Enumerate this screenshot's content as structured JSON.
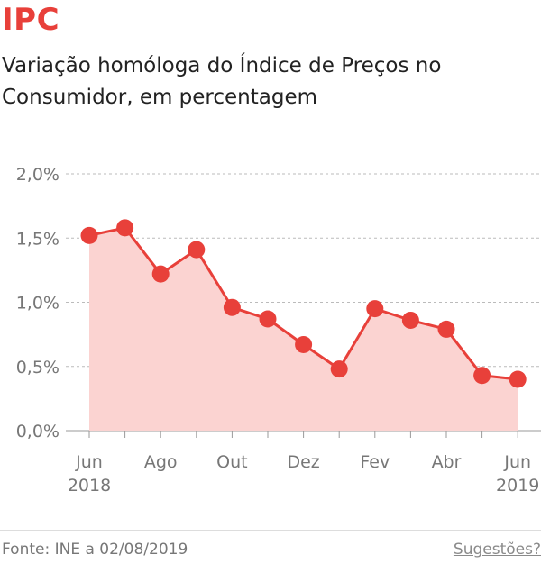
{
  "header": {
    "kicker": "IPC",
    "subtitle": "Variação homóloga do Índice de Preços no Consumidor, em percentagem"
  },
  "colors": {
    "accent": "#e8403a",
    "area_fill": "#fbd3d1",
    "grid": "#bbbbbb"
  },
  "chart_data": {
    "type": "area",
    "title": "",
    "xlabel": "",
    "ylabel": "",
    "x": [
      "Jun 2018",
      "Jul 2018",
      "Ago 2018",
      "Set 2018",
      "Out 2018",
      "Nov 2018",
      "Dez 2018",
      "Jan 2019",
      "Fev 2019",
      "Mar 2019",
      "Abr 2019",
      "Mai 2019",
      "Jun 2019"
    ],
    "values": [
      1.52,
      1.58,
      1.22,
      1.41,
      0.96,
      0.87,
      0.67,
      0.48,
      0.95,
      0.86,
      0.79,
      0.43,
      0.4
    ],
    "ylim": [
      0,
      2.0
    ],
    "y_ticks": [
      {
        "value": 0.0,
        "label": "0,0%"
      },
      {
        "value": 0.5,
        "label": "0,5%"
      },
      {
        "value": 1.0,
        "label": "1,0%"
      },
      {
        "value": 1.5,
        "label": "1,5%"
      },
      {
        "value": 2.0,
        "label": "2,0%"
      }
    ],
    "x_tick_labels": [
      {
        "index": 0,
        "line1": "Jun",
        "line2": "2018"
      },
      {
        "index": 2,
        "line1": "Ago",
        "line2": ""
      },
      {
        "index": 4,
        "line1": "Out",
        "line2": ""
      },
      {
        "index": 6,
        "line1": "Dez",
        "line2": ""
      },
      {
        "index": 8,
        "line1": "Fev",
        "line2": ""
      },
      {
        "index": 10,
        "line1": "Abr",
        "line2": ""
      },
      {
        "index": 12,
        "line1": "Jun",
        "line2": "2019"
      }
    ],
    "grid": true
  },
  "footer": {
    "source": "Fonte: INE a 02/08/2019",
    "suggest": "Sugestões?"
  }
}
